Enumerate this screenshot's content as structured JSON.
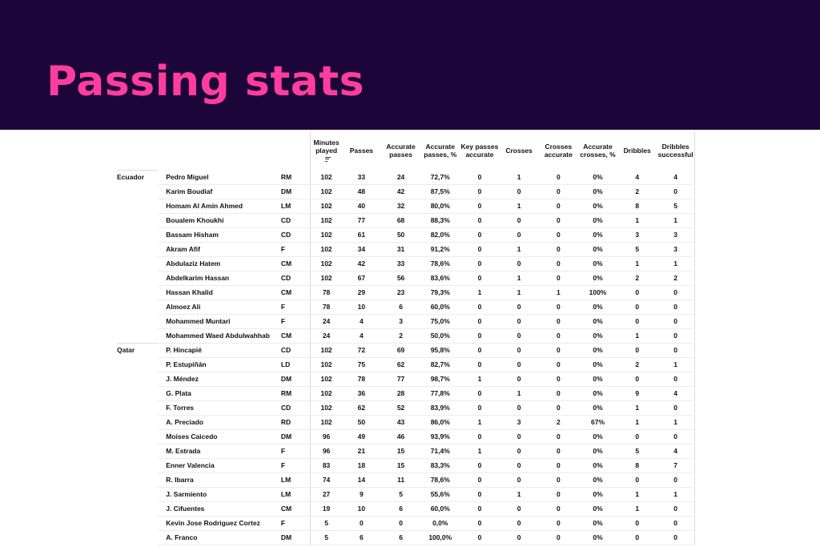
{
  "page": {
    "title": "Passing stats"
  },
  "table": {
    "columns": [
      "Minutes played",
      "Passes",
      "Accurate passes",
      "Accurate passes, %",
      "Key passes accurate",
      "Crosses",
      "Crosses accurate",
      "Accurate crosses, %",
      "Dribbles",
      "Dribbles successful"
    ],
    "sort_icon": "sort-descending-icon",
    "groups": [
      {
        "team": "Ecuador",
        "rows": [
          [
            "Pedro Miguel",
            "RM",
            "102",
            "33",
            "24",
            "72,7%",
            "0",
            "1",
            "0",
            "0%",
            "4",
            "4"
          ],
          [
            "Karim Boudiaf",
            "DM",
            "102",
            "48",
            "42",
            "87,5%",
            "0",
            "0",
            "0",
            "0%",
            "2",
            "0"
          ],
          [
            "Homam Al Amin Ahmed",
            "LM",
            "102",
            "40",
            "32",
            "80,0%",
            "0",
            "1",
            "0",
            "0%",
            "8",
            "5"
          ],
          [
            "Boualem Khoukhi",
            "CD",
            "102",
            "77",
            "68",
            "88,3%",
            "0",
            "0",
            "0",
            "0%",
            "1",
            "1"
          ],
          [
            "Bassam Hisham",
            "CD",
            "102",
            "61",
            "50",
            "82,0%",
            "0",
            "0",
            "0",
            "0%",
            "3",
            "3"
          ],
          [
            "Akram Afif",
            "F",
            "102",
            "34",
            "31",
            "91,2%",
            "0",
            "1",
            "0",
            "0%",
            "5",
            "3"
          ],
          [
            "Abdulaziz Hatem",
            "CM",
            "102",
            "42",
            "33",
            "78,6%",
            "0",
            "0",
            "0",
            "0%",
            "1",
            "1"
          ],
          [
            "Abdelkarim Hassan",
            "CD",
            "102",
            "67",
            "56",
            "83,6%",
            "0",
            "1",
            "0",
            "0%",
            "2",
            "2"
          ],
          [
            "Hassan Khalid",
            "CM",
            "78",
            "29",
            "23",
            "79,3%",
            "1",
            "1",
            "1",
            "100%",
            "0",
            "0"
          ],
          [
            "Almoez Ali",
            "F",
            "78",
            "10",
            "6",
            "60,0%",
            "0",
            "0",
            "0",
            "0%",
            "0",
            "0"
          ],
          [
            "Mohammed Muntari",
            "F",
            "24",
            "4",
            "3",
            "75,0%",
            "0",
            "0",
            "0",
            "0%",
            "0",
            "0"
          ],
          [
            " Mohammed Waed Abdulwahhab",
            "CM",
            "24",
            "4",
            "2",
            "50,0%",
            "0",
            "0",
            "0",
            "0%",
            "1",
            "0"
          ]
        ]
      },
      {
        "team": "Qatar",
        "rows": [
          [
            "P. Hincapié",
            "CD",
            "102",
            "72",
            "69",
            "95,8%",
            "0",
            "0",
            "0",
            "0%",
            "0",
            "0"
          ],
          [
            "P. Estupiñán",
            "LD",
            "102",
            "75",
            "62",
            "82,7%",
            "0",
            "0",
            "0",
            "0%",
            "2",
            "1"
          ],
          [
            "J. Méndez",
            "DM",
            "102",
            "78",
            "77",
            "98,7%",
            "1",
            "0",
            "0",
            "0%",
            "0",
            "0"
          ],
          [
            "G. Plata",
            "RM",
            "102",
            "36",
            "28",
            "77,8%",
            "0",
            "1",
            "0",
            "0%",
            "9",
            "4"
          ],
          [
            "F. Torres",
            "CD",
            "102",
            "62",
            "52",
            "83,9%",
            "0",
            "0",
            "0",
            "0%",
            "1",
            "0"
          ],
          [
            "A. Preciado",
            "RD",
            "102",
            "50",
            "43",
            "86,0%",
            "1",
            "3",
            "2",
            "67%",
            "1",
            "1"
          ],
          [
            "Moises Caicedo",
            "DM",
            "96",
            "49",
            "46",
            "93,9%",
            "0",
            "0",
            "0",
            "0%",
            "0",
            "0"
          ],
          [
            "M. Estrada",
            "F",
            "96",
            "21",
            "15",
            "71,4%",
            "1",
            "0",
            "0",
            "0%",
            "5",
            "4"
          ],
          [
            "Enner Valencia",
            "F",
            "83",
            "18",
            "15",
            "83,3%",
            "0",
            "0",
            "0",
            "0%",
            "8",
            "7"
          ],
          [
            "R. Ibarra",
            "LM",
            "74",
            "14",
            "11",
            "78,6%",
            "0",
            "0",
            "0",
            "0%",
            "0",
            "0"
          ],
          [
            "J. Sarmiento",
            "LM",
            "27",
            "9",
            "5",
            "55,6%",
            "0",
            "1",
            "0",
            "0%",
            "1",
            "1"
          ],
          [
            "J. Cifuentes",
            "CM",
            "19",
            "10",
            "6",
            "60,0%",
            "0",
            "0",
            "0",
            "0%",
            "1",
            "0"
          ],
          [
            "Kevin Jose Rodriguez Cortez",
            "F",
            "5",
            "0",
            "0",
            "0,0%",
            "0",
            "0",
            "0",
            "0%",
            "0",
            "0"
          ],
          [
            "A. Franco",
            "DM",
            "5",
            "6",
            "6",
            "100,0%",
            "0",
            "0",
            "0",
            "0%",
            "0",
            "0"
          ]
        ]
      }
    ]
  }
}
